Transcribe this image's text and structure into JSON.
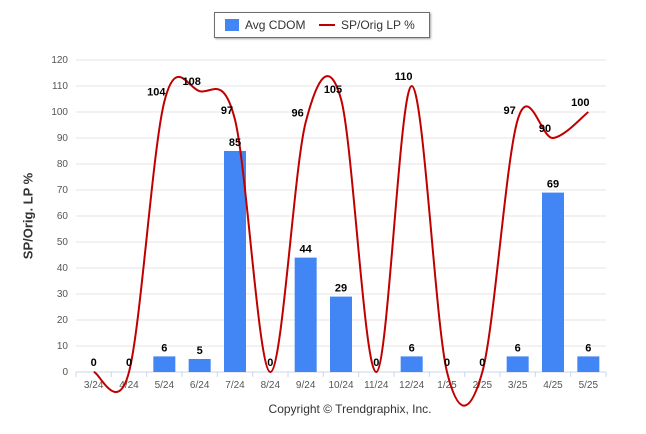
{
  "legend": {
    "bar_label": "Avg CDOM",
    "line_label": "SP/Orig LP %"
  },
  "footer": {
    "copyright": "Copyright © Trendgraphix, Inc."
  },
  "colors": {
    "bar": "#4285f4",
    "line": "#c00000",
    "grid": "#e6e6e6",
    "axis_text": "#555555"
  },
  "chart_data": {
    "type": "bar",
    "title": "",
    "xlabel": "",
    "ylabel": "SP/Orig. LP %",
    "ylim": [
      0,
      120
    ],
    "yticks": [
      0,
      10,
      20,
      30,
      40,
      50,
      60,
      70,
      80,
      90,
      100,
      110,
      120
    ],
    "grid": true,
    "legend_position": "top-center",
    "categories": [
      "3/24",
      "4/24",
      "5/24",
      "6/24",
      "7/24",
      "8/24",
      "9/24",
      "10/24",
      "11/24",
      "12/24",
      "1/25",
      "2/25",
      "3/25",
      "4/25",
      "5/25"
    ],
    "series": [
      {
        "name": "Avg CDOM",
        "type": "bar",
        "values": [
          0,
          0,
          6,
          5,
          85,
          0,
          44,
          29,
          0,
          6,
          0,
          0,
          6,
          69,
          6
        ]
      },
      {
        "name": "SP/Orig LP %",
        "type": "line",
        "values": [
          0,
          0,
          104,
          108,
          97,
          0,
          96,
          105,
          0,
          110,
          0,
          0,
          97,
          90,
          100
        ]
      }
    ]
  }
}
